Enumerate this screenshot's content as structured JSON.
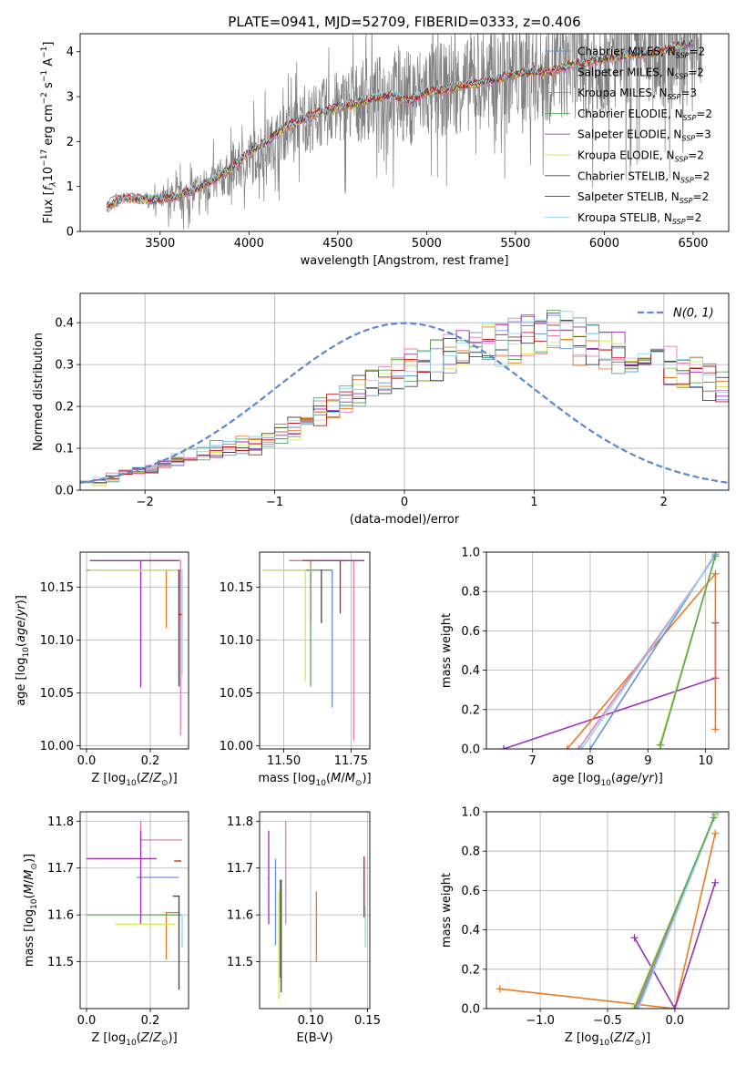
{
  "figure": {
    "title": "PLATE=0941, MJD=52709, FIBERID=0333, z=0.406"
  },
  "colors": {
    "Chabrier MILES": "#6a8fdc",
    "Salpeter MILES": "#e87ab4",
    "Kroupa MILES": "#e87b22",
    "Chabrier ELODIE": "#57a65a",
    "Salpeter ELODIE": "#9a31b5",
    "Kroupa ELODIE": "#d5e85a",
    "Chabrier STELIB": "#444444",
    "Salpeter STELIB": "#c0191a",
    "Kroupa STELIB": "#8fd6e6",
    "data": "#808080",
    "normal": "#5b87d6",
    "grid": "#b0b0b0"
  },
  "chart_data": [
    {
      "id": "spectrum",
      "type": "line",
      "xlabel": "wavelength [Angstrom, rest frame]",
      "ylabel": "Flux [f_λ10^-17 erg cm^-2 s^-1 A^-1]",
      "xlim": [
        3050,
        6700
      ],
      "ylim": [
        0,
        4.4
      ],
      "xticks": [
        3500,
        4000,
        4500,
        5000,
        5500,
        6000,
        6500
      ],
      "yticks": [
        0,
        1,
        2,
        3,
        4
      ],
      "grid": false,
      "legend_position": "top-right",
      "observed": {
        "x": [
          3200,
          3220,
          3260,
          3300,
          3400,
          3500,
          3600,
          3700,
          3800,
          3900,
          4000,
          4100,
          4200,
          4300,
          4400,
          4500,
          4600,
          4700,
          4800,
          4900,
          5000,
          5100,
          5200,
          5300,
          5400,
          5500,
          5600,
          5700,
          5800,
          5900,
          6000,
          6100,
          6200,
          6300,
          6400,
          6500,
          6550
        ],
        "y": [
          0.5,
          0.75,
          0.8,
          0.75,
          0.72,
          0.7,
          0.75,
          0.9,
          1.1,
          1.3,
          1.6,
          1.9,
          2.2,
          2.45,
          2.6,
          2.75,
          2.85,
          2.95,
          3.1,
          3.0,
          3.1,
          3.15,
          3.25,
          3.3,
          3.4,
          3.5,
          3.55,
          3.55,
          3.7,
          3.75,
          3.85,
          3.9,
          3.95,
          4.0,
          4.1,
          4.2,
          4.0
        ],
        "noise_amplitude": [
          0,
          0,
          0.05,
          0.05,
          0.05,
          0.3,
          0.5,
          0.6,
          0.6,
          0.7,
          0.9,
          0.9,
          0.9,
          1.0,
          1.1,
          1.2,
          1.3,
          1.3,
          1.4,
          1.5,
          1.6,
          1.5,
          1.5,
          1.5,
          1.5,
          1.6,
          1.6,
          1.7,
          1.7,
          1.8,
          1.8,
          1.8,
          1.9,
          1.9,
          1.9,
          2.0,
          2.0
        ]
      },
      "model_x": [
        3200,
        3300,
        3400,
        3500,
        3600,
        3700,
        3800,
        3900,
        4000,
        4100,
        4200,
        4300,
        4400,
        4500,
        4600,
        4700,
        4800,
        4900,
        5000,
        5100,
        5200,
        5300,
        5400,
        5500,
        5600,
        5700,
        5800,
        5900,
        6000,
        6100,
        6200,
        6300,
        6400,
        6500
      ],
      "model_y": [
        0.55,
        0.75,
        0.72,
        0.72,
        0.78,
        0.95,
        1.15,
        1.4,
        1.75,
        2.0,
        2.3,
        2.5,
        2.65,
        2.75,
        2.85,
        2.95,
        3.05,
        2.9,
        3.1,
        3.15,
        3.25,
        3.3,
        3.4,
        3.5,
        3.55,
        3.55,
        3.7,
        3.75,
        3.85,
        3.9,
        3.95,
        4.0,
        4.1,
        4.2
      ],
      "legend": [
        {
          "model": "Chabrier MILES",
          "label": "Chabrier MILES, N",
          "nssp": "=2"
        },
        {
          "model": "Salpeter MILES",
          "label": "Salpeter MILES, N",
          "nssp": "=2"
        },
        {
          "model": "Kroupa MILES",
          "label": "Kroupa MILES, N",
          "nssp": "=3"
        },
        {
          "model": "Chabrier ELODIE",
          "label": "Chabrier ELODIE, N",
          "nssp": "=2"
        },
        {
          "model": "Salpeter ELODIE",
          "label": "Salpeter ELODIE, N",
          "nssp": "=3"
        },
        {
          "model": "Kroupa ELODIE",
          "label": "Kroupa ELODIE, N",
          "nssp": "=2"
        },
        {
          "model": "Chabrier STELIB",
          "label": "Chabrier STELIB, N",
          "nssp": "=2"
        },
        {
          "model": "Salpeter STELIB",
          "label": "Salpeter STELIB, N",
          "nssp": "=2"
        },
        {
          "model": "Kroupa STELIB",
          "label": "Kroupa STELIB, N",
          "nssp": "=2"
        }
      ],
      "legend_sub": "SSP"
    },
    {
      "id": "residuals",
      "type": "line",
      "xlabel": "(data-model)/error",
      "ylabel": "Normed distribution",
      "xlim": [
        -2.5,
        2.5
      ],
      "ylim": [
        0,
        0.47
      ],
      "xticks": [
        -2,
        -1,
        0,
        1,
        2
      ],
      "yticks": [
        0.0,
        0.1,
        0.2,
        0.3,
        0.4
      ],
      "grid": true,
      "legend_position": "top-right",
      "normal_label": "N(0, 1)",
      "bin_width": 0.1,
      "bin_start": -2.5,
      "base_hist": [
        0.02,
        0.02,
        0.03,
        0.04,
        0.04,
        0.05,
        0.06,
        0.07,
        0.08,
        0.09,
        0.1,
        0.1,
        0.11,
        0.11,
        0.12,
        0.14,
        0.15,
        0.17,
        0.19,
        0.2,
        0.22,
        0.24,
        0.26,
        0.27,
        0.28,
        0.29,
        0.3,
        0.31,
        0.32,
        0.33,
        0.34,
        0.35,
        0.35,
        0.36,
        0.37,
        0.37,
        0.37,
        0.36,
        0.36,
        0.35,
        0.34,
        0.33,
        0.32,
        0.31,
        0.3,
        0.29,
        0.28,
        0.27,
        0.26,
        0.25,
        0.24,
        0.23,
        0.22,
        0.21,
        0.2,
        0.19,
        0.18,
        0.17,
        0.16,
        0.15,
        0.14,
        0.13,
        0.12,
        0.11,
        0.11,
        0.1,
        0.09,
        0.08,
        0.08,
        0.07,
        0.07,
        0.06,
        0.06,
        0.05,
        0.05,
        0.05,
        0.05,
        0.05,
        0.05,
        0.05
      ]
    },
    {
      "id": "age-vs-Z",
      "type": "scatter",
      "xlabel": "Z [log10(Z/Z⊙)]",
      "ylabel": "age [log10(age/yr)]",
      "xlim": [
        -0.02,
        0.32
      ],
      "ylim": [
        9.997,
        10.183
      ],
      "xticks": [
        0.0,
        0.2
      ],
      "yticks": [
        10.0,
        10.05,
        10.1,
        10.15
      ],
      "grid": true,
      "points": [
        {
          "model": "Chabrier MILES",
          "x": 0.29,
          "y": 10.166,
          "xerr": [
            0.27,
            0.0
          ],
          "yerr": [
            0.02,
            0.0
          ]
        },
        {
          "model": "Salpeter MILES",
          "x": 0.295,
          "y": 10.175,
          "xerr": [
            0.13,
            0.0
          ],
          "yerr": [
            0.165,
            0.0
          ]
        },
        {
          "model": "Kroupa MILES",
          "x": 0.25,
          "y": 10.166,
          "xerr": [
            0.08,
            0.04
          ],
          "yerr": [
            0.055,
            0.0
          ]
        },
        {
          "model": "Chabrier ELODIE",
          "x": 0.29,
          "y": 10.166,
          "xerr": [
            0.29,
            0.0
          ],
          "yerr": [
            0.05,
            0.0
          ]
        },
        {
          "model": "Salpeter ELODIE",
          "x": 0.17,
          "y": 10.175,
          "xerr": [
            0.16,
            0.12
          ],
          "yerr": [
            0.12,
            0.0
          ]
        },
        {
          "model": "Kroupa ELODIE",
          "x": 0.29,
          "y": 10.166,
          "xerr": [
            0.28,
            0.0
          ],
          "yerr": [
            0.11,
            0.0
          ]
        },
        {
          "model": "Chabrier STELIB",
          "x": 0.29,
          "y": 10.166,
          "xerr": [
            0.0,
            0.0
          ],
          "yerr": [
            0.11,
            0.0
          ]
        },
        {
          "model": "Salpeter STELIB",
          "x": 0.3,
          "y": 10.124,
          "xerr": [
            0.01,
            0.0
          ],
          "yerr": [
            0.0,
            0.0
          ]
        },
        {
          "model": "Kroupa STELIB",
          "x": 0.3,
          "y": 10.166,
          "xerr": [
            0.0,
            0.0
          ],
          "yerr": [
            0.1,
            0.0
          ]
        }
      ]
    },
    {
      "id": "age-vs-mass",
      "type": "scatter",
      "xlabel": "mass [log10(M/M⊙)]",
      "ylabel": "",
      "xlim": [
        11.41,
        11.82
      ],
      "ylim": [
        9.997,
        10.183
      ],
      "xticks": [
        11.5,
        11.75
      ],
      "yticks": [
        10.0,
        10.05,
        10.1,
        10.15
      ],
      "grid": true,
      "points": [
        {
          "model": "Chabrier MILES",
          "x": 11.68,
          "y": 10.166,
          "xerr": [
            0.2,
            0.0
          ],
          "yerr": [
            0.13,
            0.0
          ]
        },
        {
          "model": "Salpeter MILES",
          "x": 11.76,
          "y": 10.175,
          "xerr": [
            0.18,
            0.04
          ],
          "yerr": [
            0.17,
            0.0
          ]
        },
        {
          "model": "Kroupa MILES",
          "x": 11.6,
          "y": 10.175,
          "xerr": [
            0.08,
            0.12
          ],
          "yerr": [
            0.06,
            0.0
          ]
        },
        {
          "model": "Chabrier ELODIE",
          "x": 11.6,
          "y": 10.166,
          "xerr": [
            0.18,
            0.08
          ],
          "yerr": [
            0.11,
            0.0
          ]
        },
        {
          "model": "Salpeter ELODIE",
          "x": 11.72,
          "y": 10.175,
          "xerr": [
            0.15,
            0.08
          ],
          "yerr": [
            0.0,
            0.0
          ]
        },
        {
          "model": "Kroupa ELODIE",
          "x": 11.58,
          "y": 10.166,
          "xerr": [
            0.16,
            0.0
          ],
          "yerr": [
            0.105,
            0.0
          ]
        },
        {
          "model": "Chabrier STELIB",
          "x": 11.64,
          "y": 10.166,
          "xerr": [
            0.0,
            0.0
          ],
          "yerr": [
            0.05,
            0.0
          ]
        },
        {
          "model": "Salpeter STELIB",
          "x": 11.71,
          "y": 10.175,
          "xerr": [
            0.0,
            0.0
          ],
          "yerr": [
            0.05,
            0.0
          ]
        },
        {
          "model": "Kroupa STELIB",
          "x": 11.6,
          "y": 10.166,
          "xerr": [
            0.0,
            0.0
          ],
          "yerr": [
            0.0,
            0.0
          ]
        }
      ]
    },
    {
      "id": "massweight-vs-age",
      "type": "line",
      "xlabel": "age  [log10(age/yr)]",
      "ylabel": "mass weight",
      "xlim": [
        6.2,
        10.4
      ],
      "ylim": [
        0,
        1.0
      ],
      "xticks": [
        7,
        8,
        9,
        10
      ],
      "yticks": [
        0.0,
        0.2,
        0.4,
        0.6,
        0.8,
        1.0
      ],
      "grid": true,
      "series": [
        {
          "model": "Salpeter ELODIE",
          "x": [
            6.5,
            10.17,
            10.17
          ],
          "y": [
            0.0,
            0.36,
            0.64
          ]
        },
        {
          "model": "Kroupa MILES",
          "x": [
            7.6,
            10.17,
            10.17
          ],
          "y": [
            0.0,
            0.89,
            0.1
          ]
        },
        {
          "model": "Chabrier MILES",
          "x": [
            8.0,
            10.17
          ],
          "y": [
            0.0,
            0.99
          ]
        },
        {
          "model": "Salpeter MILES",
          "x": [
            7.8,
            10.17
          ],
          "y": [
            0.0,
            0.98
          ]
        },
        {
          "model": "Kroupa STELIB",
          "x": [
            7.85,
            10.17
          ],
          "y": [
            0.0,
            0.98
          ]
        },
        {
          "model": "Kroupa ELODIE",
          "x": [
            9.2,
            10.17
          ],
          "y": [
            0.02,
            0.98
          ]
        },
        {
          "model": "Chabrier ELODIE",
          "x": [
            9.22,
            10.17
          ],
          "y": [
            0.02,
            0.98
          ]
        }
      ]
    },
    {
      "id": "mass-vs-Z",
      "type": "scatter",
      "xlabel": "Z [log10(Z/Z⊙)]",
      "ylabel": "mass [log10(M/M⊙)]",
      "xlim": [
        -0.02,
        0.32
      ],
      "ylim": [
        11.4,
        11.82
      ],
      "xticks": [
        0.0,
        0.2
      ],
      "yticks": [
        11.5,
        11.6,
        11.7,
        11.8
      ],
      "grid": true,
      "points": [
        {
          "model": "Chabrier MILES",
          "x": 0.16,
          "y": 11.68,
          "xerr": [
            0.0,
            0.13
          ],
          "yerr": [
            0.0,
            0.0
          ]
        },
        {
          "model": "Salpeter MILES",
          "x": 0.17,
          "y": 11.76,
          "xerr": [
            0.0,
            0.13
          ],
          "yerr": [
            0.0,
            0.04
          ]
        },
        {
          "model": "Kroupa MILES",
          "x": 0.25,
          "y": 11.605,
          "xerr": [
            0.0,
            0.04
          ],
          "yerr": [
            0.1,
            0.0
          ]
        },
        {
          "model": "Chabrier ELODIE",
          "x": 0.15,
          "y": 11.6,
          "xerr": [
            0.15,
            0.15
          ],
          "yerr": [
            0.0,
            0.0
          ]
        },
        {
          "model": "Salpeter ELODIE",
          "x": 0.17,
          "y": 11.72,
          "xerr": [
            0.17,
            0.05
          ],
          "yerr": [
            0.14,
            0.06
          ]
        },
        {
          "model": "Kroupa ELODIE",
          "x": 0.18,
          "y": 11.58,
          "xerr": [
            0.09,
            0.1
          ],
          "yerr": [
            0.0,
            0.0
          ]
        },
        {
          "model": "Chabrier STELIB",
          "x": 0.29,
          "y": 11.64,
          "xerr": [
            0.02,
            0.0
          ],
          "yerr": [
            0.2,
            0.0
          ]
        },
        {
          "model": "Salpeter STELIB",
          "x": 0.295,
          "y": 11.715,
          "xerr": [
            0.02,
            0.0
          ],
          "yerr": [
            0.0,
            0.0
          ]
        },
        {
          "model": "Kroupa STELIB",
          "x": 0.3,
          "y": 11.6,
          "xerr": [
            0.0,
            0.0
          ],
          "yerr": [
            0.07,
            0.0
          ]
        }
      ]
    },
    {
      "id": "mass-vs-ebv",
      "type": "scatter",
      "xlabel": "E(B-V)",
      "ylabel": "",
      "xlim": [
        0.055,
        0.152
      ],
      "ylim": [
        11.4,
        11.82
      ],
      "xticks": [
        0.05,
        0.1,
        0.15
      ],
      "yticks": [
        11.5,
        11.6,
        11.7,
        11.8
      ],
      "grid": true,
      "points": [
        {
          "model": "Salpeter ELODIE",
          "x": 0.063,
          "y": 11.68,
          "yerr": [
            0.1,
            0.1
          ]
        },
        {
          "model": "Chabrier MILES",
          "x": 0.069,
          "y": 11.625,
          "yerr": [
            0.09,
            0.095
          ]
        },
        {
          "model": "Kroupa ELODIE",
          "x": 0.072,
          "y": 11.54,
          "yerr": [
            0.12,
            0.11
          ]
        },
        {
          "model": "Chabrier ELODIE",
          "x": 0.073,
          "y": 11.585,
          "yerr": [
            0.12,
            0.09
          ]
        },
        {
          "model": "Chabrier STELIB",
          "x": 0.074,
          "y": 11.555,
          "yerr": [
            0.12,
            0.12
          ]
        },
        {
          "model": "Salpeter MILES",
          "x": 0.078,
          "y": 11.7,
          "yerr": [
            0.12,
            0.1
          ]
        },
        {
          "model": "Kroupa MILES",
          "x": 0.105,
          "y": 11.575,
          "yerr": [
            0.075,
            0.075
          ]
        },
        {
          "model": "Salpeter STELIB",
          "x": 0.147,
          "y": 11.66,
          "yerr": [
            0.065,
            0.065
          ]
        },
        {
          "model": "Kroupa STELIB",
          "x": 0.148,
          "y": 11.575,
          "yerr": [
            0.045,
            0.045
          ]
        }
      ]
    },
    {
      "id": "massweight-vs-Z",
      "type": "line",
      "xlabel": "Z [log10(Z/Z⊙)]",
      "ylabel": "mass weight",
      "xlim": [
        -1.4,
        0.4
      ],
      "ylim": [
        0,
        1.0
      ],
      "xticks": [
        -1.0,
        -0.5,
        0.0
      ],
      "yticks": [
        0.0,
        0.2,
        0.4,
        0.6,
        0.8,
        1.0
      ],
      "grid": true,
      "series": [
        {
          "model": "Kroupa MILES",
          "x": [
            -1.3,
            0.0,
            0.3
          ],
          "y": [
            0.1,
            0.0,
            0.89
          ]
        },
        {
          "model": "Salpeter ELODIE",
          "x": [
            -0.3,
            0.0,
            0.3
          ],
          "y": [
            0.36,
            0.0,
            0.64
          ]
        },
        {
          "model": "Chabrier MILES",
          "x": [
            -0.28,
            0.3
          ],
          "y": [
            0.0,
            0.99
          ]
        },
        {
          "model": "Salpeter MILES",
          "x": [
            -0.29,
            0.3
          ],
          "y": [
            0.0,
            0.98
          ]
        },
        {
          "model": "Kroupa STELIB",
          "x": [
            -0.27,
            0.3
          ],
          "y": [
            0.0,
            0.98
          ]
        },
        {
          "model": "Kroupa ELODIE",
          "x": [
            -0.31,
            0.3
          ],
          "y": [
            0.0,
            0.98
          ]
        },
        {
          "model": "Chabrier ELODIE",
          "x": [
            -0.3,
            0.29
          ],
          "y": [
            0.0,
            0.97
          ]
        }
      ]
    }
  ]
}
